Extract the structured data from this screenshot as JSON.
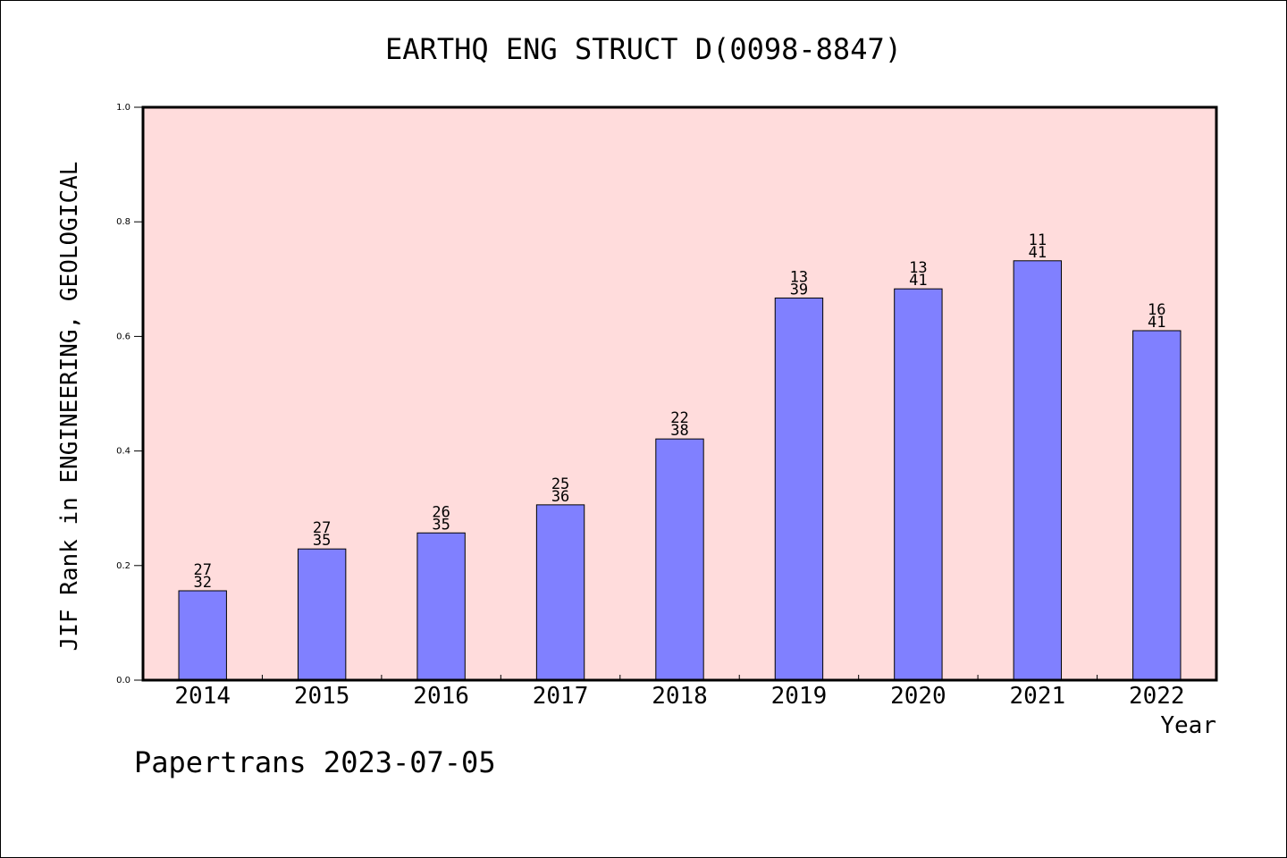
{
  "chart_data": {
    "type": "bar",
    "title": "EARTHQ ENG STRUCT D(0098-8847)",
    "xlabel": "Year",
    "ylabel": "JIF Rank in ENGINEERING, GEOLOGICAL",
    "ylim": [
      0,
      1.0
    ],
    "yticks": [
      "0.0",
      "0.2",
      "0.4",
      "0.6",
      "0.8",
      "1.0"
    ],
    "categories": [
      "2014",
      "2015",
      "2016",
      "2017",
      "2018",
      "2019",
      "2020",
      "2021",
      "2022"
    ],
    "values": [
      0.156,
      0.229,
      0.257,
      0.306,
      0.421,
      0.667,
      0.683,
      0.732,
      0.61
    ],
    "rank_labels": [
      [
        "27",
        "32"
      ],
      [
        "27",
        "35"
      ],
      [
        "26",
        "35"
      ],
      [
        "25",
        "36"
      ],
      [
        "22",
        "38"
      ],
      [
        "13",
        "39"
      ],
      [
        "13",
        "41"
      ],
      [
        "11",
        "41"
      ],
      [
        "16",
        "41"
      ]
    ],
    "colors": {
      "bar": "#8080ff",
      "plot_bg": "#ffdcdc",
      "axis": "#000000"
    },
    "grid": false
  },
  "footer": {
    "note": "Papertrans 2023-07-05"
  }
}
